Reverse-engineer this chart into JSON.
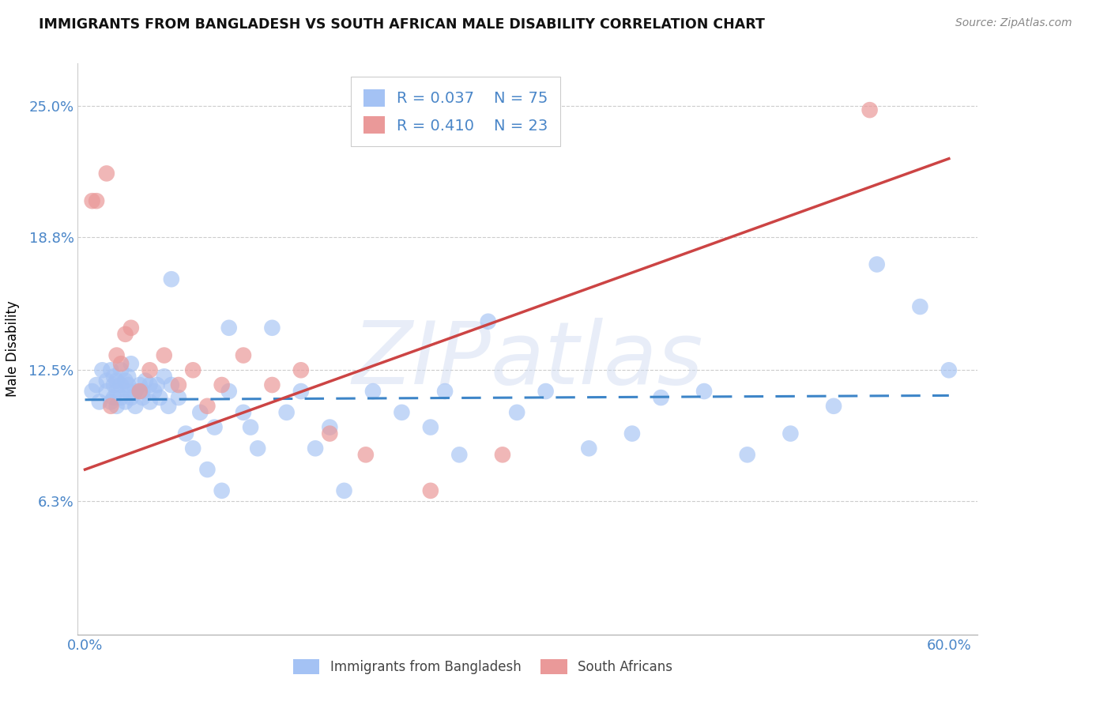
{
  "title": "IMMIGRANTS FROM BANGLADESH VS SOUTH AFRICAN MALE DISABILITY CORRELATION CHART",
  "source": "Source: ZipAtlas.com",
  "ylabel": "Male Disability",
  "legend_label_1": "Immigrants from Bangladesh",
  "legend_label_2": "South Africans",
  "R1": 0.037,
  "N1": 75,
  "R2": 0.41,
  "N2": 23,
  "xlim": [
    -0.005,
    0.62
  ],
  "ylim": [
    0.0,
    0.27
  ],
  "yticks": [
    0.063,
    0.125,
    0.188,
    0.25
  ],
  "ytick_labels": [
    "6.3%",
    "12.5%",
    "18.8%",
    "25.0%"
  ],
  "xtick_labels": [
    "0.0%",
    "60.0%"
  ],
  "xtick_vals": [
    0.0,
    0.6
  ],
  "color_blue": "#a4c2f4",
  "color_pink": "#ea9999",
  "line_color_blue": "#3d85c8",
  "line_color_pink": "#cc4444",
  "axis_color": "#4a86c8",
  "watermark": "ZIPatlas",
  "bg_color": "#ffffff",
  "blue_x": [
    0.005,
    0.008,
    0.01,
    0.012,
    0.015,
    0.015,
    0.018,
    0.018,
    0.02,
    0.02,
    0.02,
    0.022,
    0.022,
    0.022,
    0.025,
    0.025,
    0.025,
    0.028,
    0.028,
    0.03,
    0.03,
    0.03,
    0.032,
    0.032,
    0.035,
    0.035,
    0.038,
    0.04,
    0.04,
    0.042,
    0.045,
    0.045,
    0.048,
    0.05,
    0.052,
    0.055,
    0.058,
    0.06,
    0.065,
    0.07,
    0.075,
    0.08,
    0.085,
    0.09,
    0.095,
    0.1,
    0.11,
    0.115,
    0.12,
    0.13,
    0.14,
    0.15,
    0.16,
    0.17,
    0.18,
    0.2,
    0.22,
    0.24,
    0.26,
    0.28,
    0.3,
    0.32,
    0.35,
    0.38,
    0.4,
    0.43,
    0.46,
    0.49,
    0.52,
    0.55,
    0.58,
    0.6,
    0.25,
    0.1,
    0.06
  ],
  "blue_y": [
    0.115,
    0.118,
    0.11,
    0.125,
    0.12,
    0.115,
    0.11,
    0.125,
    0.112,
    0.118,
    0.122,
    0.115,
    0.108,
    0.12,
    0.118,
    0.112,
    0.125,
    0.11,
    0.12,
    0.115,
    0.118,
    0.122,
    0.112,
    0.128,
    0.115,
    0.108,
    0.118,
    0.115,
    0.112,
    0.12,
    0.118,
    0.11,
    0.115,
    0.118,
    0.112,
    0.122,
    0.108,
    0.118,
    0.112,
    0.095,
    0.088,
    0.105,
    0.078,
    0.098,
    0.068,
    0.115,
    0.105,
    0.098,
    0.088,
    0.145,
    0.105,
    0.115,
    0.088,
    0.098,
    0.068,
    0.115,
    0.105,
    0.098,
    0.085,
    0.148,
    0.105,
    0.115,
    0.088,
    0.095,
    0.112,
    0.115,
    0.085,
    0.095,
    0.108,
    0.175,
    0.155,
    0.125,
    0.115,
    0.145,
    0.168
  ],
  "pink_x": [
    0.005,
    0.008,
    0.015,
    0.018,
    0.022,
    0.025,
    0.028,
    0.032,
    0.038,
    0.045,
    0.055,
    0.065,
    0.075,
    0.085,
    0.095,
    0.11,
    0.13,
    0.15,
    0.17,
    0.195,
    0.24,
    0.29,
    0.545
  ],
  "pink_y": [
    0.205,
    0.205,
    0.218,
    0.108,
    0.132,
    0.128,
    0.142,
    0.145,
    0.115,
    0.125,
    0.132,
    0.118,
    0.125,
    0.108,
    0.118,
    0.132,
    0.118,
    0.125,
    0.095,
    0.085,
    0.068,
    0.085,
    0.248
  ],
  "blue_line_x": [
    0.0,
    0.6
  ],
  "blue_line_y": [
    0.111,
    0.113
  ],
  "pink_line_x": [
    0.0,
    0.6
  ],
  "pink_line_y": [
    0.078,
    0.225
  ]
}
